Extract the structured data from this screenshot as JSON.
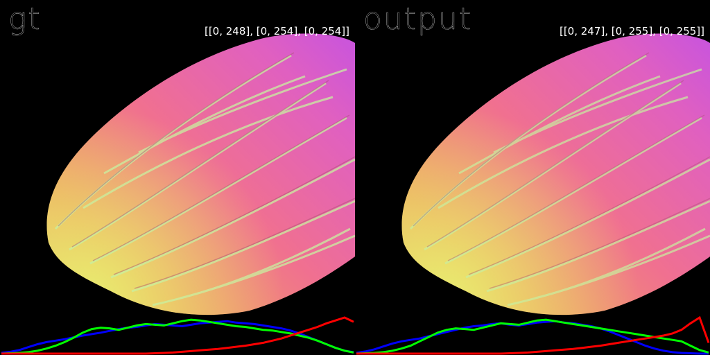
{
  "panels": [
    {
      "id": "gt",
      "title": "gt",
      "range_text": "[[0, 248], [0, 254], [0, 254]]",
      "histogram": {
        "colors": {
          "red": "#ff0000",
          "green": "#00ff00",
          "blue": "#0000ff"
        },
        "blue": [
          0.02,
          0.05,
          0.1,
          0.18,
          0.26,
          0.32,
          0.36,
          0.4,
          0.45,
          0.5,
          0.54,
          0.58,
          0.63,
          0.68,
          0.72,
          0.74,
          0.78,
          0.82,
          0.8,
          0.78,
          0.76,
          0.8,
          0.84,
          0.86,
          0.88,
          0.9,
          0.86,
          0.84,
          0.82,
          0.78,
          0.74,
          0.7,
          0.64,
          0.56,
          0.46,
          0.36,
          0.26,
          0.16,
          0.08,
          0.04
        ],
        "green": [
          0.0,
          0.01,
          0.02,
          0.04,
          0.08,
          0.14,
          0.22,
          0.32,
          0.44,
          0.58,
          0.68,
          0.72,
          0.7,
          0.66,
          0.72,
          0.78,
          0.82,
          0.8,
          0.78,
          0.84,
          0.9,
          0.94,
          0.92,
          0.88,
          0.84,
          0.8,
          0.76,
          0.74,
          0.7,
          0.66,
          0.64,
          0.6,
          0.56,
          0.5,
          0.44,
          0.36,
          0.26,
          0.16,
          0.08,
          0.03
        ],
        "red": [
          0.0,
          0.0,
          0.0,
          0.0,
          0.0,
          0.0,
          0.0,
          0.0,
          0.0,
          0.0,
          0.0,
          0.0,
          0.0,
          0.0,
          0.0,
          0.0,
          0.0,
          0.01,
          0.02,
          0.03,
          0.05,
          0.07,
          0.09,
          0.11,
          0.13,
          0.16,
          0.19,
          0.22,
          0.26,
          0.3,
          0.36,
          0.42,
          0.5,
          0.58,
          0.66,
          0.74,
          0.84,
          0.92,
          1.0,
          0.88
        ]
      }
    },
    {
      "id": "output",
      "title": "output",
      "range_text": "[[0, 247], [0, 255], [0, 255]]",
      "histogram": {
        "colors": {
          "red": "#ff0000",
          "green": "#00ff00",
          "blue": "#0000ff"
        },
        "blue": [
          0.02,
          0.06,
          0.12,
          0.2,
          0.28,
          0.34,
          0.38,
          0.42,
          0.48,
          0.54,
          0.6,
          0.66,
          0.72,
          0.76,
          0.78,
          0.82,
          0.84,
          0.8,
          0.78,
          0.82,
          0.86,
          0.88,
          0.9,
          0.86,
          0.84,
          0.8,
          0.76,
          0.7,
          0.62,
          0.52,
          0.42,
          0.32,
          0.22,
          0.14,
          0.08,
          0.04,
          0.02,
          0.01,
          0.0,
          0.0
        ],
        "green": [
          0.0,
          0.01,
          0.02,
          0.04,
          0.08,
          0.14,
          0.22,
          0.34,
          0.46,
          0.58,
          0.66,
          0.7,
          0.68,
          0.66,
          0.72,
          0.78,
          0.84,
          0.82,
          0.8,
          0.86,
          0.92,
          0.94,
          0.9,
          0.86,
          0.82,
          0.78,
          0.74,
          0.7,
          0.66,
          0.62,
          0.58,
          0.54,
          0.5,
          0.46,
          0.42,
          0.38,
          0.34,
          0.22,
          0.1,
          0.03
        ],
        "red": [
          0.0,
          0.0,
          0.0,
          0.0,
          0.0,
          0.0,
          0.0,
          0.0,
          0.0,
          0.0,
          0.0,
          0.0,
          0.0,
          0.0,
          0.0,
          0.0,
          0.0,
          0.01,
          0.02,
          0.03,
          0.05,
          0.07,
          0.09,
          0.11,
          0.13,
          0.16,
          0.19,
          0.22,
          0.26,
          0.3,
          0.34,
          0.38,
          0.42,
          0.46,
          0.5,
          0.56,
          0.66,
          0.84,
          1.0,
          0.3
        ]
      }
    }
  ]
}
